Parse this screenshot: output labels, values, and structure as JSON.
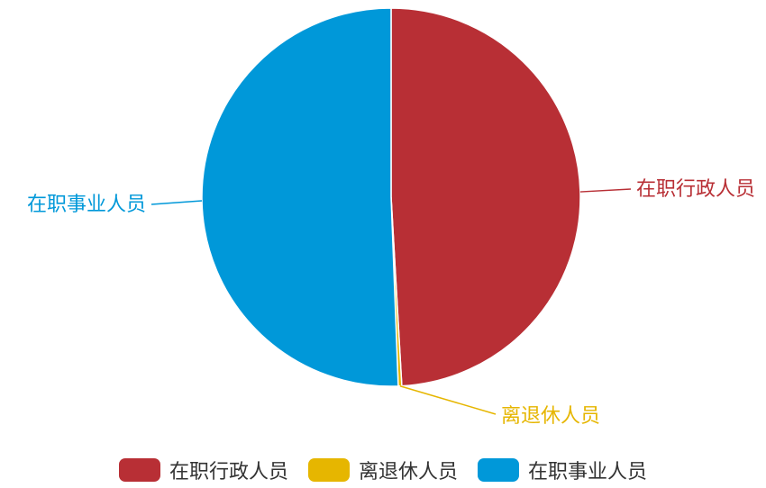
{
  "chart_data": {
    "type": "pie",
    "title": "",
    "series": [
      {
        "data": [
          {
            "name": "在职行政人员",
            "value": 49.1,
            "color": "#b82f35"
          },
          {
            "name": "离退休人员",
            "value": 0.3,
            "color": "#e6b600"
          },
          {
            "name": "在职事业人员",
            "value": 50.6,
            "color": "#0098d9"
          }
        ]
      }
    ],
    "legend_position": "bottom-center"
  },
  "legend": {
    "items": [
      {
        "label": "在职行政人员",
        "color": "#b82f35"
      },
      {
        "label": "离退休人员",
        "color": "#e6b600"
      },
      {
        "label": "在职事业人员",
        "color": "#0098d9"
      }
    ]
  }
}
